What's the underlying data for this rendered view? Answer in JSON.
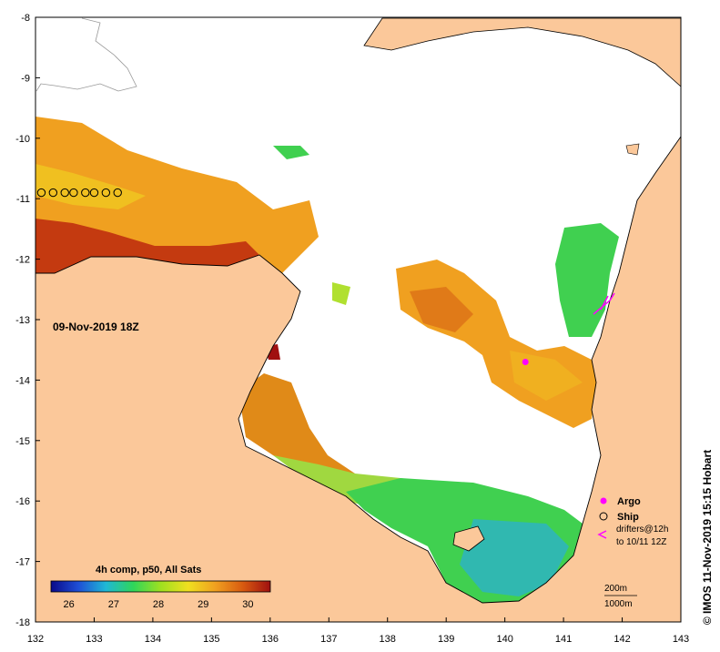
{
  "map": {
    "timestamp": "09-Nov-2019 18Z",
    "credit": "© IMOS 11-Nov-2019 15:15 Hobart",
    "colorbar_title": "4h comp, p50, All Sats",
    "colorbar_ticks": [
      "26",
      "27",
      "28",
      "29",
      "30"
    ],
    "colorbar_range": [
      25.6,
      30.5
    ],
    "colorbar_stops": [
      "#0a0a8a",
      "#1f4fd6",
      "#1fb8d6",
      "#2fd65a",
      "#9fe020",
      "#f0e020",
      "#f0a020",
      "#d85a10",
      "#a01010"
    ],
    "x_ticks": [
      "132",
      "133",
      "134",
      "135",
      "136",
      "137",
      "138",
      "139",
      "140",
      "141",
      "142",
      "143"
    ],
    "y_ticks": [
      "-8",
      "-9",
      "-10",
      "-11",
      "-12",
      "-13",
      "-14",
      "-15",
      "-16",
      "-17",
      "-18"
    ],
    "lon_range": [
      132,
      143
    ],
    "lat_range": [
      -18,
      -8
    ],
    "legend": {
      "argo": "Argo",
      "ship": "Ship",
      "drifters_line1": "drifters@12h",
      "drifters_line2": "to 10/11 12Z",
      "contour_200": "200m",
      "contour_1000": "1000m"
    },
    "colors": {
      "land": "#fbc89a",
      "coast": "#000000",
      "argo": "#ff00ff",
      "drifter": "#ff00ff"
    },
    "ship_positions": [
      [
        132.1,
        -10.9
      ],
      [
        132.3,
        -10.9
      ],
      [
        132.5,
        -10.9
      ],
      [
        132.65,
        -10.9
      ],
      [
        132.85,
        -10.9
      ],
      [
        133.0,
        -10.9
      ],
      [
        133.2,
        -10.9
      ],
      [
        133.4,
        -10.9
      ]
    ],
    "argo_position": [
      140.35,
      -13.7
    ]
  }
}
